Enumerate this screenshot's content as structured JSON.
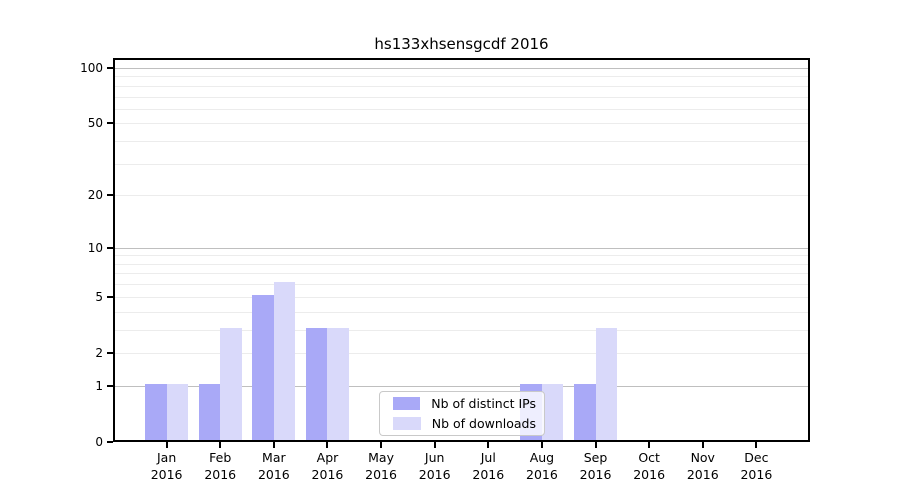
{
  "chart_data": {
    "type": "bar",
    "title": "hs133xhsensgcdf 2016",
    "categories": [
      "Jan 2016",
      "Feb 2016",
      "Mar 2016",
      "Apr 2016",
      "May 2016",
      "Jun 2016",
      "Jul 2016",
      "Aug 2016",
      "Sep 2016",
      "Oct 2016",
      "Nov 2016",
      "Dec 2016"
    ],
    "series": [
      {
        "name": "Nb of distinct IPs",
        "color": "#a9a9f7",
        "values": [
          1,
          1,
          5,
          3,
          0,
          0,
          0,
          1,
          1,
          0,
          0,
          0
        ]
      },
      {
        "name": "Nb of downloads",
        "color": "#d9d9fa",
        "values": [
          1,
          3,
          6,
          3,
          0,
          0,
          0,
          1,
          3,
          0,
          0,
          0
        ]
      }
    ],
    "yscale": "log1p",
    "ylim": [
      0,
      113
    ],
    "yticks": [
      0,
      1,
      2,
      5,
      10,
      20,
      50,
      100
    ],
    "major_gridlines": [
      1,
      10,
      100
    ],
    "minor_gridlines": [
      2,
      3,
      4,
      5,
      6,
      7,
      8,
      9,
      20,
      30,
      40,
      50,
      60,
      70,
      80,
      90
    ],
    "grid": "horizontal",
    "legend_position": "inside-bottom-center",
    "colors": {
      "major_grid": "#bfbfbf",
      "minor_grid": "#ececec",
      "spine": "#000000",
      "background": "#ffffff"
    }
  }
}
